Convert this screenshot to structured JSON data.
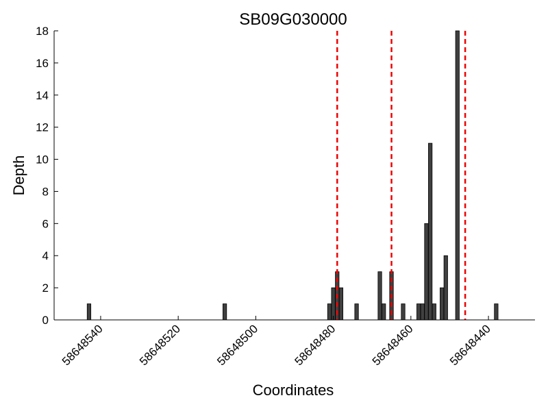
{
  "chart_data": {
    "type": "bar",
    "title": "SB09G030000",
    "xlabel": "Coordinates",
    "ylabel": "Depth",
    "x_axis_inverted": true,
    "xlim": [
      58648552,
      58648428
    ],
    "ylim": [
      0,
      18
    ],
    "x_ticks": [
      58648540,
      58648520,
      58648500,
      58648480,
      58648460,
      58648440
    ],
    "y_ticks": [
      0,
      2,
      4,
      6,
      8,
      10,
      12,
      14,
      16,
      18
    ],
    "bar_color": "#404040",
    "bar_edge_color": "#000000",
    "marker_color": "#ee0000",
    "grid": false,
    "bars": [
      {
        "x": 58648543,
        "value": 1
      },
      {
        "x": 58648508,
        "value": 1
      },
      {
        "x": 58648481,
        "value": 1
      },
      {
        "x": 58648480,
        "value": 2
      },
      {
        "x": 58648479,
        "value": 3
      },
      {
        "x": 58648478,
        "value": 2
      },
      {
        "x": 58648474,
        "value": 1
      },
      {
        "x": 58648468,
        "value": 3
      },
      {
        "x": 58648467,
        "value": 1
      },
      {
        "x": 58648465,
        "value": 3
      },
      {
        "x": 58648462,
        "value": 1
      },
      {
        "x": 58648458,
        "value": 1
      },
      {
        "x": 58648457,
        "value": 1
      },
      {
        "x": 58648456,
        "value": 6
      },
      {
        "x": 58648455,
        "value": 11
      },
      {
        "x": 58648454,
        "value": 1
      },
      {
        "x": 58648452,
        "value": 2
      },
      {
        "x": 58648451,
        "value": 4
      },
      {
        "x": 58648448,
        "value": 18
      },
      {
        "x": 58648438,
        "value": 1
      }
    ],
    "vertical_markers": [
      58648479,
      58648465,
      58648446
    ]
  }
}
